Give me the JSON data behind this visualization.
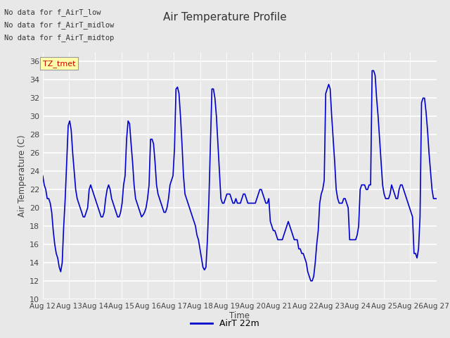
{
  "title": "Air Temperature Profile",
  "xlabel": "Time",
  "ylabel": "Air Temperature (C)",
  "ylim": [
    10,
    37
  ],
  "yticks": [
    10,
    12,
    14,
    16,
    18,
    20,
    22,
    24,
    26,
    28,
    30,
    32,
    34,
    36
  ],
  "line_color": "#0000cc",
  "line_width": 1.2,
  "legend_label": "AirT 22m",
  "background_color": "#e8e8e8",
  "plot_bg_color": "#e8e8e8",
  "annotations": [
    "No data for f_AirT_low",
    "No data for f_AirT_midlow",
    "No data for f_AirT_midtop"
  ],
  "tz_label": "TZ_tmet",
  "x_tick_labels": [
    "Aug 12",
    "Aug 13",
    "Aug 14",
    "Aug 15",
    "Aug 16",
    "Aug 17",
    "Aug 18",
    "Aug 19",
    "Aug 20",
    "Aug 21",
    "Aug 22",
    "Aug 23",
    "Aug 24",
    "Aug 25",
    "Aug 26",
    "Aug 27"
  ],
  "temperature_data": [
    23.5,
    22.5,
    22.0,
    21.0,
    21.0,
    20.5,
    19.5,
    17.5,
    16.0,
    15.0,
    14.5,
    13.5,
    13.0,
    14.0,
    18.0,
    21.0,
    25.0,
    29.0,
    29.5,
    28.5,
    26.0,
    24.0,
    22.0,
    21.0,
    20.5,
    20.0,
    19.5,
    19.0,
    19.0,
    19.5,
    20.0,
    22.0,
    22.5,
    22.0,
    21.5,
    21.0,
    20.5,
    20.0,
    19.5,
    19.0,
    19.0,
    19.5,
    21.0,
    22.0,
    22.5,
    22.0,
    21.0,
    20.5,
    20.0,
    19.5,
    19.0,
    19.0,
    19.5,
    20.5,
    22.5,
    23.5,
    27.5,
    29.5,
    29.2,
    27.0,
    25.0,
    22.5,
    21.0,
    20.5,
    20.0,
    19.5,
    19.0,
    19.2,
    19.5,
    20.0,
    21.0,
    22.5,
    27.5,
    27.5,
    27.0,
    25.0,
    22.5,
    21.5,
    21.0,
    20.5,
    20.0,
    19.5,
    19.5,
    20.0,
    21.0,
    22.5,
    23.0,
    23.5,
    26.5,
    33.0,
    33.2,
    32.5,
    30.0,
    27.0,
    23.5,
    21.5,
    21.0,
    20.5,
    20.0,
    19.5,
    19.0,
    18.5,
    18.0,
    17.0,
    16.5,
    15.5,
    14.5,
    13.5,
    13.2,
    13.5,
    16.5,
    21.0,
    27.0,
    33.0,
    33.0,
    32.0,
    30.0,
    27.0,
    24.0,
    21.0,
    20.5,
    20.5,
    21.0,
    21.5,
    21.5,
    21.5,
    21.0,
    20.5,
    20.5,
    21.0,
    20.5,
    20.5,
    20.5,
    21.0,
    21.5,
    21.5,
    21.0,
    20.5,
    20.5,
    20.5,
    20.5,
    20.5,
    20.5,
    21.0,
    21.5,
    22.0,
    22.0,
    21.5,
    21.0,
    20.5,
    20.5,
    21.0,
    18.5,
    18.0,
    17.5,
    17.5,
    17.0,
    16.5,
    16.5,
    16.5,
    16.5,
    17.0,
    17.5,
    18.0,
    18.5,
    18.0,
    17.5,
    17.0,
    16.5,
    16.5,
    16.5,
    15.5,
    15.5,
    15.0,
    15.0,
    14.5,
    14.0,
    13.0,
    12.5,
    12.0,
    12.0,
    12.5,
    14.0,
    16.0,
    17.5,
    20.5,
    21.5,
    22.0,
    23.0,
    32.5,
    33.0,
    33.5,
    33.0,
    30.0,
    27.5,
    25.0,
    22.0,
    21.0,
    20.5,
    20.5,
    20.5,
    21.0,
    21.0,
    20.5,
    20.0,
    16.5,
    16.5,
    16.5,
    16.5,
    16.5,
    17.0,
    18.0,
    22.0,
    22.5,
    22.5,
    22.5,
    22.0,
    22.0,
    22.5,
    22.5,
    35.0,
    35.0,
    34.5,
    32.0,
    30.0,
    27.5,
    25.0,
    22.5,
    21.5,
    21.0,
    21.0,
    21.0,
    21.5,
    22.5,
    22.0,
    21.5,
    21.0,
    21.0,
    22.0,
    22.5,
    22.5,
    22.0,
    21.5,
    21.0,
    20.5,
    20.0,
    19.5,
    19.0,
    15.0,
    15.0,
    14.5,
    15.5,
    19.0,
    31.5,
    32.0,
    32.0,
    30.5,
    28.5,
    26.0,
    24.0,
    22.0,
    21.0,
    21.0,
    21.0
  ]
}
